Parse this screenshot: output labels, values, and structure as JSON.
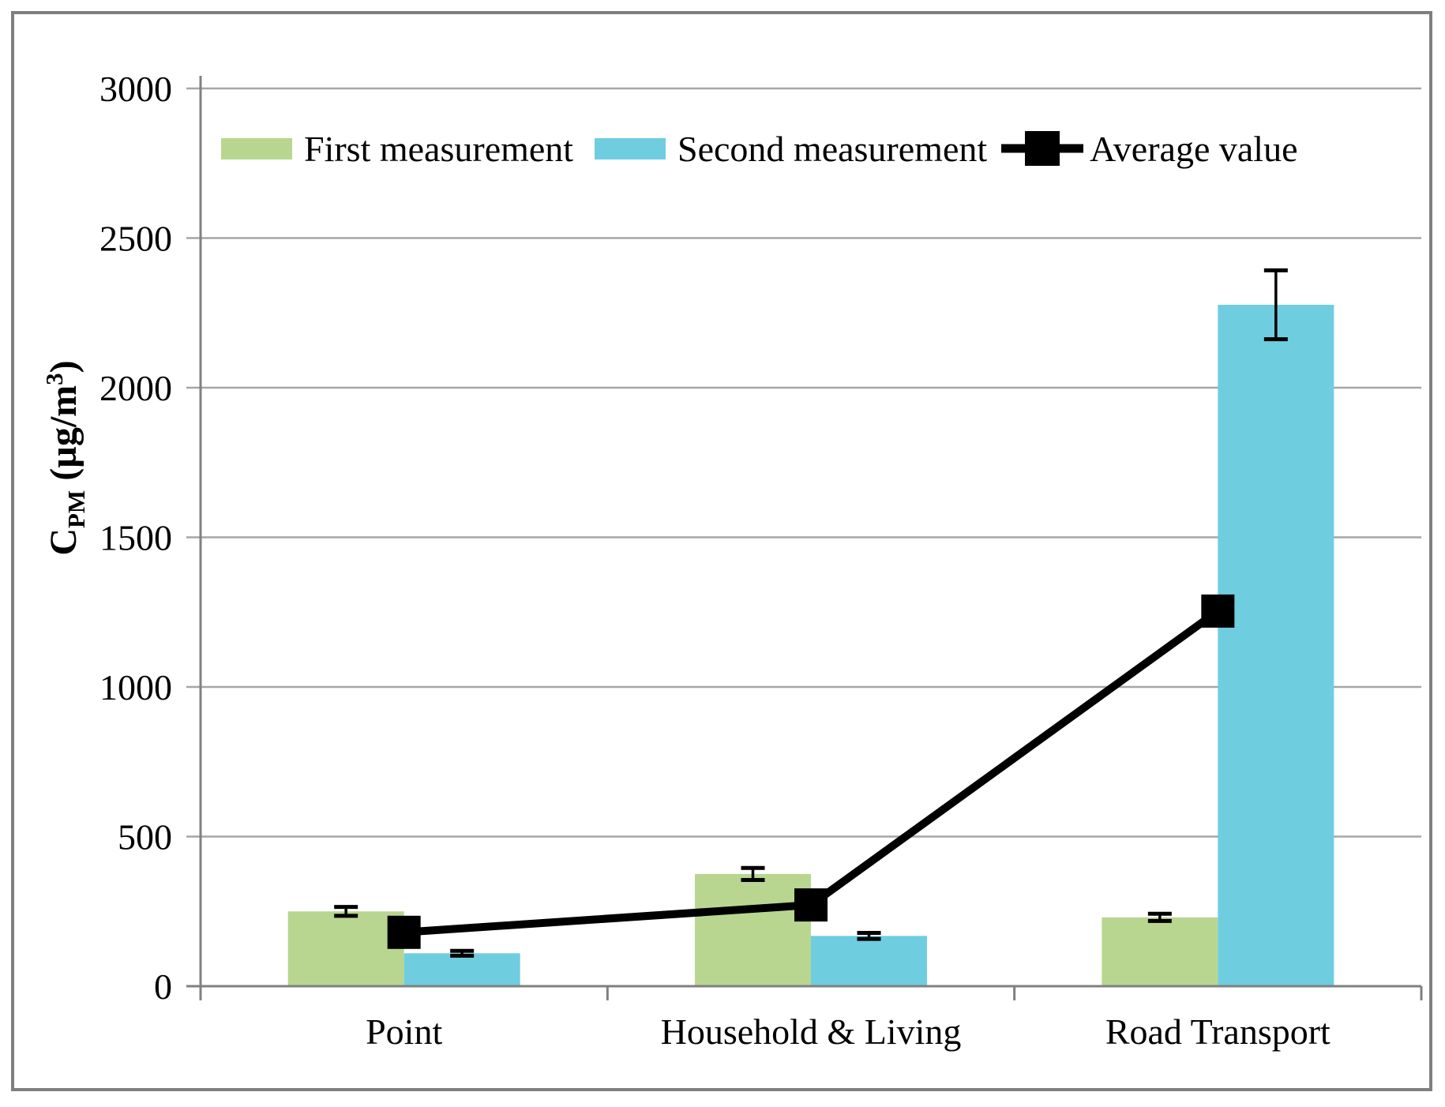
{
  "chart_data": {
    "type": "bar",
    "title": "",
    "categories": [
      "Point",
      "Household & Living",
      "Road Transport"
    ],
    "series": [
      {
        "name": "First measurement",
        "type": "bar",
        "color": "#b9d690",
        "values": [
          250,
          375,
          230
        ],
        "errors": [
          15,
          20,
          12
        ]
      },
      {
        "name": "Second measurement",
        "type": "bar",
        "color": "#6fcde0",
        "values": [
          110,
          168,
          2277
        ],
        "errors": [
          8,
          10,
          115
        ]
      },
      {
        "name": "Average value",
        "type": "line",
        "color": "#000000",
        "marker": "square",
        "values": [
          180,
          271.5,
          1253.5
        ]
      }
    ],
    "xlabel": "",
    "ylabel": "C_PM (µg/m³)",
    "ylabel_parts": {
      "c": "C",
      "sub": "PM",
      "mid": " (µg/m",
      "sup": "3",
      "close": ")"
    },
    "ylim": [
      0,
      3000
    ],
    "yticks": [
      0,
      500,
      1000,
      1500,
      2000,
      2500,
      3000
    ],
    "ytick_labels": [
      "0",
      "500",
      "1000",
      "1500",
      "2000",
      "2500",
      "3000"
    ],
    "grid": true,
    "legend_position": "top-inside",
    "legend": [
      {
        "label": "First measurement",
        "swatch": "bar",
        "color": "#b9d690"
      },
      {
        "label": "Second measurement",
        "swatch": "bar",
        "color": "#6fcde0"
      },
      {
        "label": "Average value",
        "swatch": "line-square",
        "color": "#000000"
      }
    ]
  },
  "colors": {
    "grid": "#a6a6a6",
    "axis": "#808080",
    "frame": "#7f7f7f",
    "error_bar": "#000000",
    "text": "#000000",
    "background": "#ffffff"
  }
}
